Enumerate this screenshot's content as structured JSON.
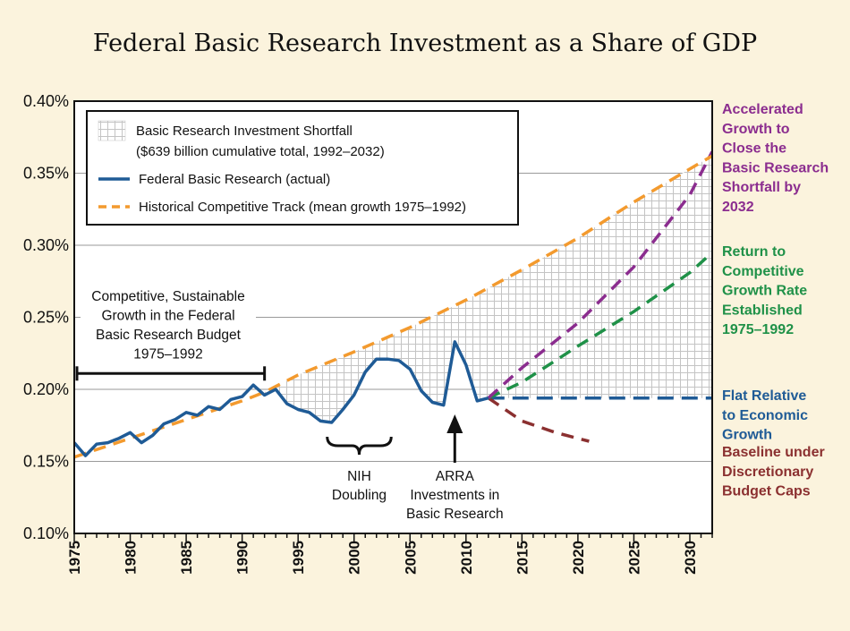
{
  "chart_data": {
    "type": "line",
    "title": "Federal Basic Research Investment as a Share of GDP",
    "xlabel": "",
    "ylabel": "",
    "xlim": [
      1975,
      2032
    ],
    "ylim": [
      0.1,
      0.4
    ],
    "y_ticks": [
      {
        "value": 0.4,
        "label": "0.40%"
      },
      {
        "value": 0.35,
        "label": "0.35%"
      },
      {
        "value": 0.3,
        "label": "0.30%"
      },
      {
        "value": 0.25,
        "label": "0.25%"
      },
      {
        "value": 0.2,
        "label": "0.20%"
      },
      {
        "value": 0.15,
        "label": "0.15%"
      },
      {
        "value": 0.1,
        "label": "0.10%"
      }
    ],
    "x_ticks": [
      {
        "value": 1975,
        "label": "1975"
      },
      {
        "value": 1980,
        "label": "1980"
      },
      {
        "value": 1985,
        "label": "1985"
      },
      {
        "value": 1990,
        "label": "1990"
      },
      {
        "value": 1995,
        "label": "1995"
      },
      {
        "value": 2000,
        "label": "2000"
      },
      {
        "value": 2005,
        "label": "2005"
      },
      {
        "value": 2010,
        "label": "2010"
      },
      {
        "value": 2015,
        "label": "2015"
      },
      {
        "value": 2020,
        "label": "2020"
      },
      {
        "value": 2025,
        "label": "2025"
      },
      {
        "value": 2030,
        "label": "2030"
      }
    ],
    "grid": true,
    "legend": {
      "placement": "top-left",
      "entries": [
        {
          "kind": "hatch",
          "label": "Basic Research Investment Shortfall",
          "label2": "($639 billion cumulative total, 1992–2032)"
        },
        {
          "kind": "solid",
          "label": "Federal Basic Research (actual)"
        },
        {
          "kind": "dashed",
          "label": "Historical Competitive Track (mean growth 1975–1992)"
        }
      ]
    },
    "series": [
      {
        "name": "Federal Basic Research (actual)",
        "color": "#1f5b96",
        "style": "solid",
        "x": [
          1975,
          1976,
          1977,
          1978,
          1979,
          1980,
          1981,
          1982,
          1983,
          1984,
          1985,
          1986,
          1987,
          1988,
          1989,
          1990,
          1991,
          1992,
          1993,
          1994,
          1995,
          1996,
          1997,
          1998,
          1999,
          2000,
          2001,
          2002,
          2003,
          2004,
          2005,
          2006,
          2007,
          2008,
          2009,
          2010,
          2011,
          2012
        ],
        "values": [
          0.163,
          0.154,
          0.162,
          0.163,
          0.166,
          0.17,
          0.163,
          0.168,
          0.176,
          0.179,
          0.184,
          0.182,
          0.188,
          0.186,
          0.193,
          0.195,
          0.203,
          0.196,
          0.2,
          0.19,
          0.186,
          0.184,
          0.178,
          0.177,
          0.186,
          0.196,
          0.212,
          0.221,
          0.221,
          0.22,
          0.214,
          0.199,
          0.191,
          0.189,
          0.233,
          0.217,
          0.192,
          0.194
        ]
      },
      {
        "name": "Historical Competitive Track (mean growth 1975–1992)",
        "color": "#f39a2e",
        "style": "dashed",
        "x": [
          1975,
          1980,
          1985,
          1990,
          1992,
          1995,
          2000,
          2005,
          2010,
          2015,
          2020,
          2025,
          2030,
          2032
        ],
        "values": [
          0.153,
          0.166,
          0.179,
          0.192,
          0.198,
          0.21,
          0.226,
          0.243,
          0.262,
          0.283,
          0.305,
          0.33,
          0.353,
          0.362
        ]
      },
      {
        "name": "Accelerated Growth to Close the Basic Research Shortfall by 2032",
        "color": "#8b2d8f",
        "style": "dashed",
        "x": [
          2012,
          2015,
          2020,
          2025,
          2030,
          2032
        ],
        "values": [
          0.194,
          0.215,
          0.246,
          0.285,
          0.335,
          0.365
        ]
      },
      {
        "name": "Return to Competitive Growth Rate Established 1975–1992",
        "color": "#1f9148",
        "style": "dashed",
        "x": [
          2012,
          2015,
          2020,
          2025,
          2030,
          2032
        ],
        "values": [
          0.194,
          0.205,
          0.23,
          0.254,
          0.281,
          0.295
        ]
      },
      {
        "name": "Flat Relative to Economic Growth",
        "color": "#1f5b96",
        "style": "dashed",
        "x": [
          2012,
          2032
        ],
        "values": [
          0.194,
          0.194
        ]
      },
      {
        "name": "Baseline under Discretionary Budget Caps",
        "color": "#8b3030",
        "style": "dashed",
        "x": [
          2012,
          2015,
          2018,
          2021
        ],
        "values": [
          0.194,
          0.178,
          0.17,
          0.164
        ]
      }
    ],
    "shortfall_area": {
      "label": "Basic Research Investment Shortfall",
      "x_range": [
        1992,
        2032
      ]
    },
    "annotations": [
      {
        "id": "competitive",
        "lines": [
          "Competitive, Sustainable",
          "Growth in the Federal",
          "Basic Research Budget",
          "1975–1992"
        ],
        "x_range": [
          1975,
          1992
        ],
        "y": 0.211
      },
      {
        "id": "nih",
        "lines": [
          "NIH",
          "Doubling"
        ],
        "x_range": [
          1998,
          2003
        ]
      },
      {
        "id": "arra",
        "lines": [
          "ARRA",
          "Investments in",
          "Basic Research"
        ],
        "x": 2009
      }
    ],
    "side_labels": [
      {
        "id": "accelerated",
        "color": "#8b2d8f",
        "lines": [
          "Accelerated",
          "Growth to",
          "Close the",
          "Basic Research",
          "Shortfall by",
          "2032"
        ]
      },
      {
        "id": "return",
        "color": "#1f9148",
        "lines": [
          "Return to",
          "Competitive",
          "Growth Rate",
          "Established",
          "1975–1992"
        ]
      },
      {
        "id": "flat",
        "color": "#1f5b96",
        "lines": [
          "Flat Relative",
          "to Economic",
          "Growth"
        ]
      },
      {
        "id": "baseline",
        "color": "#8b3030",
        "lines": [
          "Baseline under",
          "Discretionary",
          "Budget Caps"
        ]
      }
    ]
  }
}
